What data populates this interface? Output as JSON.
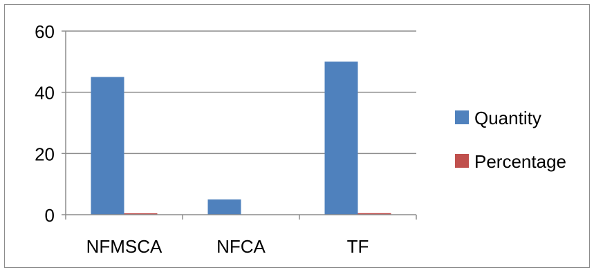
{
  "chart_data": {
    "type": "bar",
    "categories": [
      "NFMSCA",
      "NFCA",
      "TF"
    ],
    "series": [
      {
        "name": "Quantity",
        "values": [
          45,
          5,
          50
        ],
        "color": "#4f81bd"
      },
      {
        "name": "Percentage",
        "values": [
          0.45,
          0.05,
          0.5
        ],
        "color": "#c0504d"
      }
    ],
    "yticks": [
      0,
      20,
      40,
      60
    ],
    "ylim": [
      0,
      60
    ],
    "grid": true,
    "legend": "right"
  }
}
